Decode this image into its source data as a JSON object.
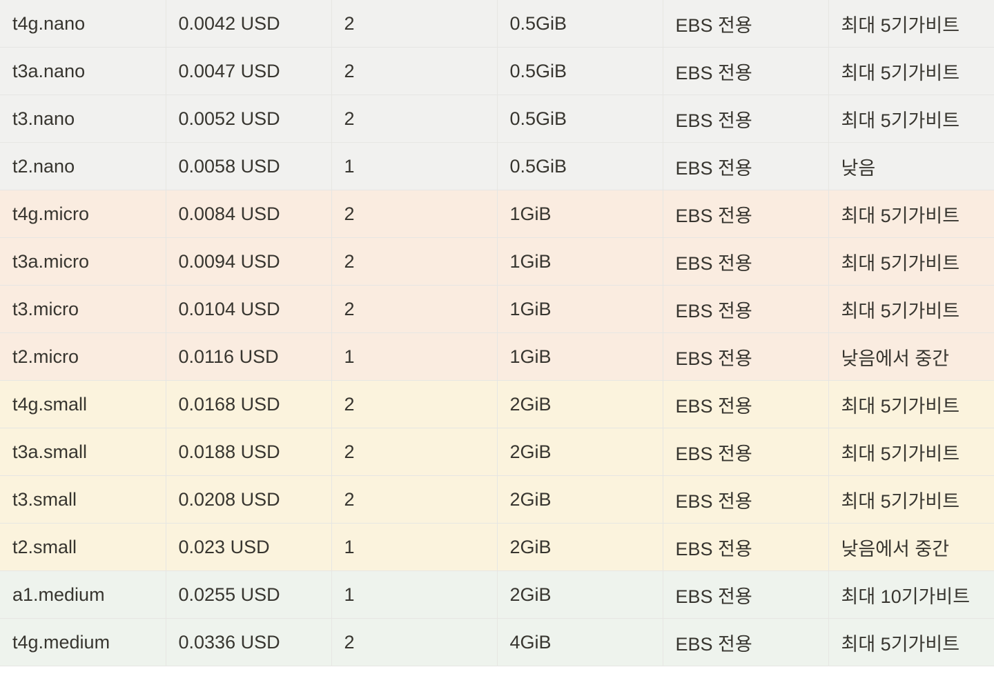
{
  "table": {
    "rows": [
      {
        "group": "gray",
        "cells": [
          "t4g.nano",
          "0.0042 USD",
          "2",
          "0.5GiB",
          "EBS 전용",
          "최대 5기가비트"
        ]
      },
      {
        "group": "gray",
        "cells": [
          "t3a.nano",
          "0.0047 USD",
          "2",
          "0.5GiB",
          "EBS 전용",
          "최대 5기가비트"
        ]
      },
      {
        "group": "gray",
        "cells": [
          "t3.nano",
          "0.0052 USD",
          "2",
          "0.5GiB",
          "EBS 전용",
          "최대 5기가비트"
        ]
      },
      {
        "group": "gray",
        "cells": [
          "t2.nano",
          "0.0058 USD",
          "1",
          "0.5GiB",
          "EBS 전용",
          "낮음"
        ]
      },
      {
        "group": "orange",
        "cells": [
          "t4g.micro",
          "0.0084 USD",
          "2",
          "1GiB",
          "EBS 전용",
          "최대 5기가비트"
        ]
      },
      {
        "group": "orange",
        "cells": [
          "t3a.micro",
          "0.0094 USD",
          "2",
          "1GiB",
          "EBS 전용",
          "최대 5기가비트"
        ]
      },
      {
        "group": "orange",
        "cells": [
          "t3.micro",
          "0.0104 USD",
          "2",
          "1GiB",
          "EBS 전용",
          "최대 5기가비트"
        ]
      },
      {
        "group": "orange",
        "cells": [
          "t2.micro",
          "0.0116 USD",
          "1",
          "1GiB",
          "EBS 전용",
          "낮음에서 중간"
        ]
      },
      {
        "group": "yellow",
        "cells": [
          "t4g.small",
          "0.0168 USD",
          "2",
          "2GiB",
          "EBS 전용",
          "최대 5기가비트"
        ]
      },
      {
        "group": "yellow",
        "cells": [
          "t3a.small",
          "0.0188 USD",
          "2",
          "2GiB",
          "EBS 전용",
          "최대 5기가비트"
        ]
      },
      {
        "group": "yellow",
        "cells": [
          "t3.small",
          "0.0208 USD",
          "2",
          "2GiB",
          "EBS 전용",
          "최대 5기가비트"
        ]
      },
      {
        "group": "yellow",
        "cells": [
          "t2.small",
          "0.023 USD",
          "1",
          "2GiB",
          "EBS 전용",
          "낮음에서 중간"
        ]
      },
      {
        "group": "green",
        "cells": [
          "a1.medium",
          "0.0255 USD",
          "1",
          "2GiB",
          "EBS 전용",
          "최대 10기가비트"
        ]
      },
      {
        "group": "green",
        "cells": [
          "t4g.medium",
          "0.0336 USD",
          "2",
          "4GiB",
          "EBS 전용",
          "최대 5기가비트"
        ]
      }
    ]
  },
  "colors": {
    "gray": "#f1f1ef",
    "orange": "#faece0",
    "yellow": "#fbf3dd",
    "green": "#eef3ed",
    "text": "#37352f",
    "border": "#e6e6e3"
  }
}
